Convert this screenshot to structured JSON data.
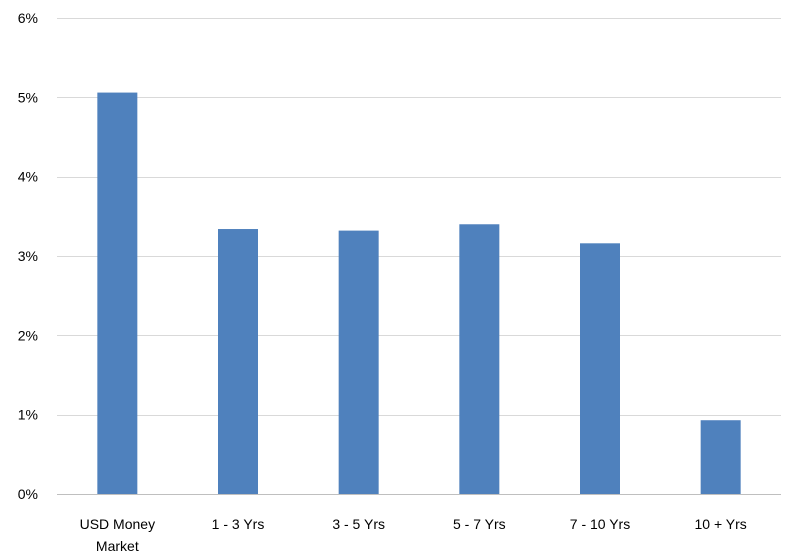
{
  "chart_data": {
    "type": "bar",
    "categories": [
      "USD Money Market",
      "1 - 3 Yrs",
      "3 - 5 Yrs",
      "5 - 7 Yrs",
      "7 - 10 Yrs",
      "10 + Yrs"
    ],
    "category_label_lines": [
      [
        "USD Money",
        "Market"
      ],
      [
        "1 - 3 Yrs"
      ],
      [
        "3 - 5 Yrs"
      ],
      [
        "5 - 7 Yrs"
      ],
      [
        "7 - 10 Yrs"
      ],
      [
        "10 + Yrs"
      ]
    ],
    "series": [
      {
        "values": [
          5.06,
          3.34,
          3.32,
          3.4,
          3.16,
          0.93
        ]
      }
    ],
    "ylim": [
      0,
      6
    ],
    "yticks": [
      0,
      1,
      2,
      3,
      4,
      5,
      6
    ],
    "ytick_labels": [
      "0%",
      "1%",
      "2%",
      "3%",
      "4%",
      "5%",
      "6%"
    ],
    "title": "",
    "xlabel": "",
    "ylabel": "",
    "grid": true,
    "legend": "none",
    "colors": {
      "bar": "#4f81bd",
      "grid": "#d9d9d9",
      "axis": "#bfbfbf",
      "text": "#000000"
    }
  }
}
